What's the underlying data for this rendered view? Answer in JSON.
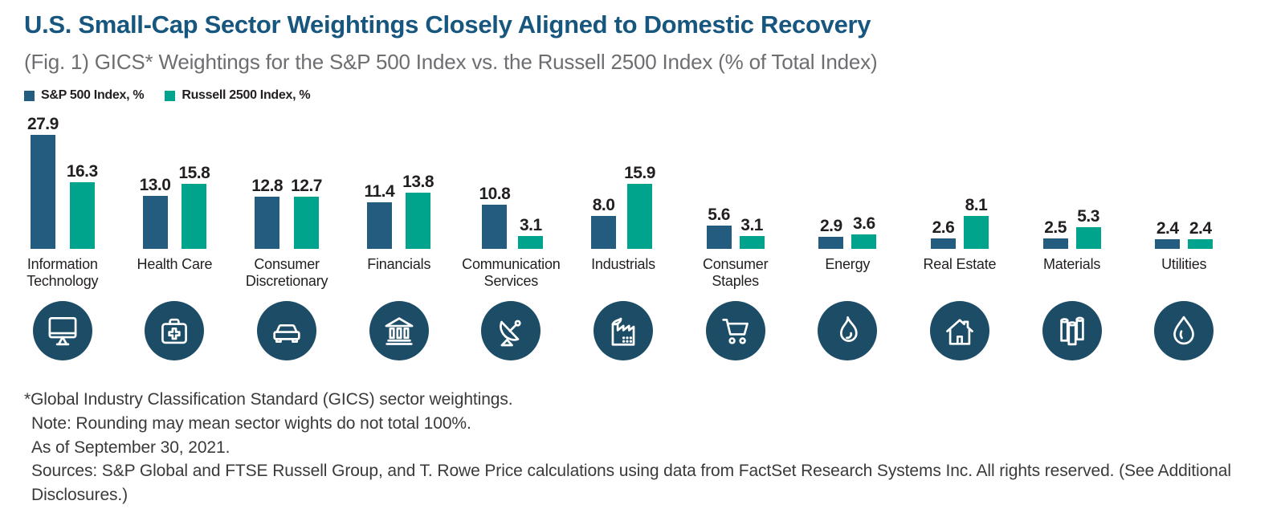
{
  "header": {
    "title": "U.S. Small-Cap Sector Weightings Closely Aligned to Domestic Recovery",
    "subtitle": "(Fig. 1) GICS* Weightings for the S&P 500 Index vs. the Russell 2500 Index (% of Total Index)"
  },
  "legend": [
    {
      "label": "S&P 500 Index, %",
      "color": "#235c7e"
    },
    {
      "label": "Russell 2500 Index, %",
      "color": "#00a48c"
    }
  ],
  "chart_data": {
    "type": "bar",
    "title": "GICS Weightings for the S&P 500 Index vs. the Russell 2500 Index (% of Total Index)",
    "categories": [
      "Information Technology",
      "Health Care",
      "Consumer Discretionary",
      "Financials",
      "Communication Services",
      "Industrials",
      "Consumer Staples",
      "Energy",
      "Real Estate",
      "Materials",
      "Utilities"
    ],
    "series": [
      {
        "name": "S&P 500 Index, %",
        "color": "#235c7e",
        "values": [
          27.9,
          13.0,
          12.8,
          11.4,
          10.8,
          8.0,
          5.6,
          2.9,
          2.6,
          2.5,
          2.4
        ]
      },
      {
        "name": "Russell 2500 Index, %",
        "color": "#00a48c",
        "values": [
          16.3,
          15.8,
          12.7,
          13.8,
          3.1,
          15.9,
          3.1,
          3.6,
          8.1,
          5.3,
          2.4
        ]
      }
    ],
    "icons": [
      "monitor-icon",
      "medical-bag-icon",
      "car-icon",
      "bank-icon",
      "satellite-dish-icon",
      "factory-icon",
      "shopping-cart-icon",
      "flame-icon",
      "house-icon",
      "pipes-icon",
      "water-drop-icon"
    ],
    "value_labels": "on",
    "decimals": 1,
    "xlabel": "",
    "ylabel": "",
    "ylim": [
      0,
      30
    ],
    "grid": false,
    "axis_lines": false,
    "legend_position": "top-left"
  },
  "footnotes": {
    "line1": "*Global Industry Classification Standard (GICS) sector weightings.",
    "line2": "Note: Rounding may mean sector wights do not total 100%.",
    "line3": "As of September 30, 2021.",
    "line4": "Sources: S&P Global and FTSE Russell Group, and T. Rowe Price calculations using data from FactSet Research Systems Inc. All rights reserved. (See Additional Disclosures.)"
  },
  "colors": {
    "title_blue": "#16567f",
    "subtitle_gray": "#6d6e71",
    "sp500_navy": "#235c7e",
    "russell_teal": "#00a48c",
    "icon_circle_navy": "#1c4c66",
    "text_black": "#231f20"
  }
}
